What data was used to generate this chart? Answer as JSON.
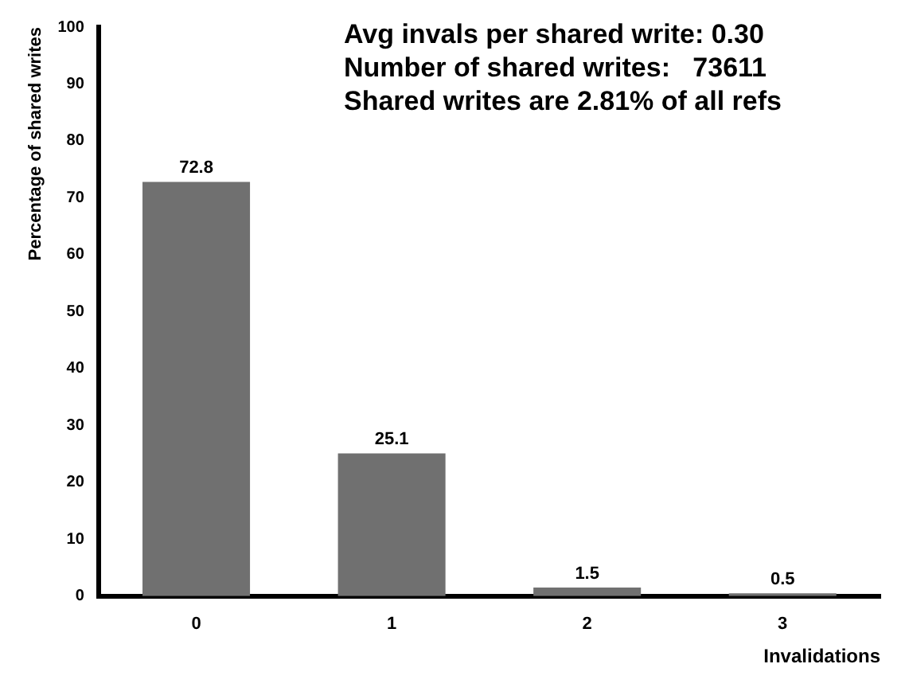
{
  "chart_data": {
    "type": "bar",
    "xlabel": "Invalidations",
    "ylabel": "Percentage of shared writes",
    "categories": [
      "0",
      "1",
      "2",
      "3"
    ],
    "values": [
      72.8,
      25.1,
      1.5,
      0.5
    ],
    "color": "#707070",
    "ylim": [
      0,
      100
    ],
    "yticks": [
      0,
      10,
      20,
      30,
      40,
      50,
      60,
      70,
      80,
      90,
      100
    ],
    "data_labels": true,
    "grid": false,
    "legend": false,
    "annotations": [
      "Avg invals per shared write: 0.30",
      "Number of shared writes:   73611",
      "Shared writes are 2.81% of all refs"
    ]
  }
}
